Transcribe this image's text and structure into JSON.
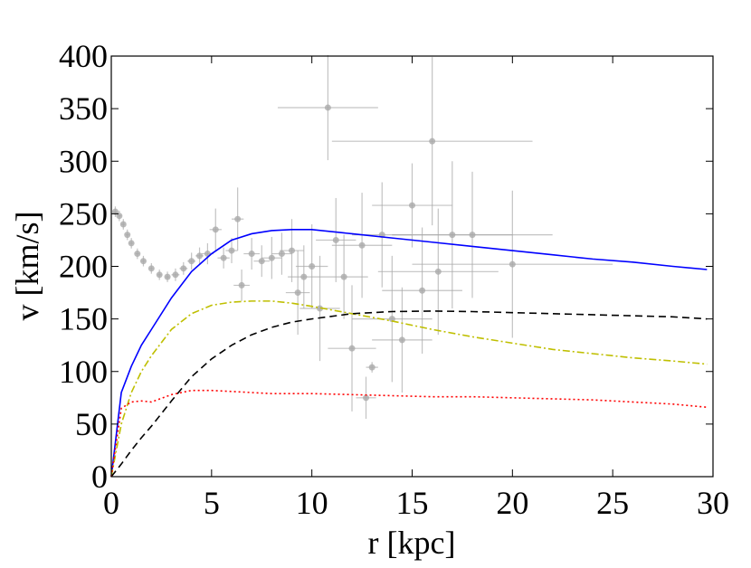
{
  "chart_data": {
    "type": "line",
    "xlabel": "r [kpc]",
    "ylabel": "v [km/s]",
    "xlim": [
      0,
      30
    ],
    "ylim": [
      0,
      400
    ],
    "xticks": [
      0,
      5,
      10,
      15,
      20,
      25,
      30
    ],
    "yticks": [
      0,
      50,
      100,
      150,
      200,
      250,
      300,
      350,
      400
    ],
    "x": [
      0,
      0.5,
      1,
      1.5,
      2,
      3,
      4,
      5,
      6,
      7,
      8,
      9,
      10,
      12,
      14,
      16,
      18,
      20,
      22,
      24,
      26,
      28,
      29.7
    ],
    "series": [
      {
        "color": "#0000ff",
        "linestyle": "solid",
        "values": [
          0,
          80,
          105,
          125,
          140,
          170,
          195,
          212,
          225,
          231,
          234,
          235,
          235,
          231,
          227,
          223,
          219,
          215,
          211,
          207,
          204,
          200,
          197
        ]
      },
      {
        "color": "#bfbf00",
        "linestyle": "dashdot",
        "values": [
          0,
          50,
          80,
          100,
          115,
          140,
          155,
          163,
          166,
          167,
          167,
          165,
          162,
          155,
          148,
          140,
          133,
          127,
          121,
          117,
          113,
          110,
          107
        ]
      },
      {
        "color": "#000000",
        "linestyle": "dashed",
        "values": [
          0,
          12,
          25,
          37,
          48,
          72,
          95,
          112,
          125,
          135,
          142,
          147,
          150,
          155,
          157,
          157.5,
          157,
          156,
          155,
          154,
          153,
          152,
          150
        ]
      },
      {
        "color": "#ff0000",
        "linestyle": "dotted",
        "values": [
          0,
          65,
          71,
          72,
          71,
          78,
          82,
          82,
          81,
          80,
          79,
          79,
          79,
          78,
          77,
          76,
          76,
          75,
          74,
          73,
          71,
          69,
          66
        ]
      }
    ],
    "points": {
      "color": "#aaaaaa",
      "x": [
        0.2,
        0.4,
        0.6,
        0.8,
        1.0,
        1.3,
        1.6,
        2,
        2.4,
        2.8,
        3.2,
        3.6,
        4,
        4.4,
        4.8,
        5.2,
        5.6,
        6,
        6.3,
        6.5,
        7,
        7.5,
        8,
        8.5,
        9,
        9.3,
        9.6,
        10,
        10.4,
        10.8,
        11.2,
        11.6,
        12,
        12.5,
        12.7,
        13,
        13.5,
        14,
        14.5,
        15,
        15.5,
        16,
        16.3,
        17,
        18,
        20
      ],
      "values": [
        252,
        248,
        240,
        230,
        222,
        212,
        205,
        198,
        192,
        190,
        192,
        198,
        205,
        210,
        212,
        235,
        208,
        215,
        245,
        182,
        212,
        205,
        208,
        212,
        215,
        175,
        190,
        200,
        160,
        351,
        225,
        190,
        122,
        220,
        75,
        104,
        230,
        150,
        130,
        258,
        177,
        319,
        195,
        230,
        230,
        202
      ],
      "xerr": [
        0.1,
        0.1,
        0.1,
        0.1,
        0.1,
        0.1,
        0.1,
        0.1,
        0.1,
        0.1,
        0.2,
        0.2,
        0.2,
        0.2,
        0.3,
        0.3,
        0.3,
        0.3,
        0.3,
        0.4,
        0.4,
        0.4,
        0.5,
        0.5,
        0.6,
        0.6,
        0.8,
        0.8,
        1,
        2.5,
        1,
        1.2,
        1.2,
        1.5,
        0.5,
        0.3,
        1.5,
        2,
        1.5,
        2,
        2,
        5,
        3,
        3,
        4,
        5
      ],
      "yerr": [
        5,
        5,
        5,
        5,
        5,
        5,
        5,
        5,
        5,
        5,
        6,
        6,
        8,
        8,
        10,
        20,
        10,
        12,
        30,
        15,
        15,
        15,
        20,
        20,
        30,
        40,
        30,
        40,
        50,
        50,
        40,
        40,
        60,
        50,
        20,
        5,
        50,
        60,
        50,
        40,
        60,
        80,
        60,
        70,
        60,
        70
      ]
    }
  }
}
